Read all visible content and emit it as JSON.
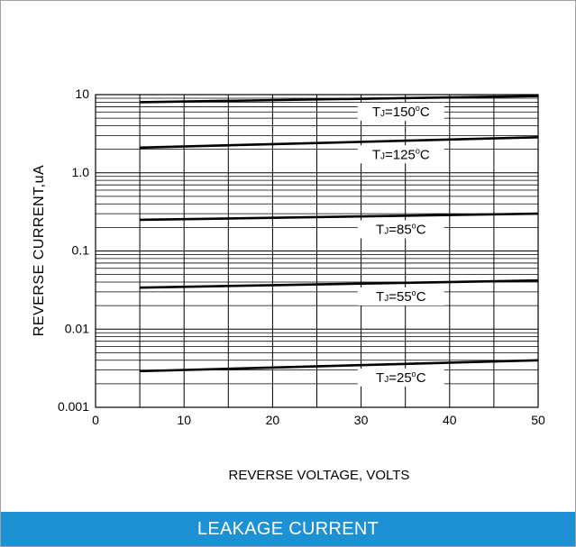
{
  "footer": {
    "caption": "LEAKAGE CURRENT"
  },
  "chart_data": {
    "type": "line",
    "xlabel": "REVERSE VOLTAGE, VOLTS",
    "ylabel": "REVERSE CURRENT,uA",
    "xlim": [
      0,
      50
    ],
    "ylim": [
      0.001,
      10
    ],
    "yscale": "log",
    "grid": true,
    "x_ticks": [
      0,
      10,
      20,
      30,
      40,
      50
    ],
    "x_tick_labels": [
      "0",
      "10",
      "20",
      "30",
      "40",
      "50"
    ],
    "y_ticks": [
      0.001,
      0.01,
      0.1,
      1,
      10
    ],
    "y_tick_labels": [
      "0.001",
      "0.01",
      "0.1",
      "1.0",
      "10"
    ],
    "series": [
      {
        "name": "TJ=150°C",
        "label_parts": [
          "T",
          "J",
          "=150",
          "o",
          "C"
        ],
        "x": [
          5,
          50
        ],
        "y": [
          8.0,
          9.6
        ]
      },
      {
        "name": "TJ=125°C",
        "label_parts": [
          "T",
          "J",
          "=125",
          "o",
          "C"
        ],
        "x": [
          5,
          50
        ],
        "y": [
          2.1,
          2.85
        ]
      },
      {
        "name": "TJ=85°C",
        "label_parts": [
          "T",
          "J",
          "=85",
          "o",
          "C"
        ],
        "x": [
          5,
          50
        ],
        "y": [
          0.25,
          0.3
        ]
      },
      {
        "name": "TJ=55°C",
        "label_parts": [
          "T",
          "J",
          "=55",
          "o",
          "C"
        ],
        "x": [
          5,
          50
        ],
        "y": [
          0.034,
          0.042
        ]
      },
      {
        "name": "TJ=25°C",
        "label_parts": [
          "T",
          "J",
          "=25",
          "o",
          "C"
        ],
        "x": [
          5,
          50
        ],
        "y": [
          0.0029,
          0.004
        ]
      }
    ]
  }
}
